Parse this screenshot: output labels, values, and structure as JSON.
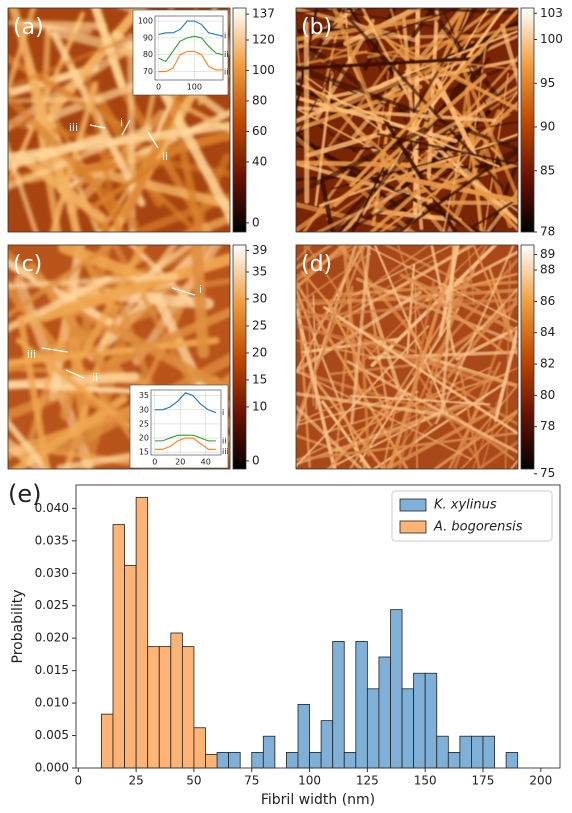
{
  "chart_data": [
    {
      "type": "image",
      "panel_label": "(a)",
      "clim": [
        -6,
        141
      ],
      "colorbar_ticks": [
        0,
        40,
        60,
        80,
        100,
        120,
        137
      ],
      "markers": [
        "iii",
        "i",
        "ii"
      ],
      "inset": {
        "type": "line",
        "xlim": [
          -10,
          180
        ],
        "ylim": [
          65,
          103
        ],
        "xticks": [
          0,
          100
        ],
        "yticks": [
          70,
          80,
          90,
          100
        ],
        "x": [
          0,
          20,
          40,
          60,
          80,
          100,
          120,
          140,
          160,
          180
        ],
        "series": [
          {
            "name": "i",
            "color": "#1f77b4",
            "values": [
              92,
              93,
              93,
              95,
              100,
              100,
              98,
              93,
              92,
              91
            ]
          },
          {
            "name": "ii",
            "color": "#2ca02c",
            "values": [
              78,
              76,
              82,
              88,
              90,
              91,
              90,
              85,
              81,
              80
            ]
          },
          {
            "name": "iii",
            "color": "#ff7f0e",
            "values": [
              70,
              70,
              72,
              80,
              82,
              82,
              80,
              73,
              71,
              71
            ]
          }
        ]
      }
    },
    {
      "type": "image",
      "panel_label": "(b)",
      "clim": [
        78,
        103.6
      ],
      "colorbar_ticks": [
        78,
        85,
        90,
        95,
        100,
        103
      ]
    },
    {
      "type": "image",
      "panel_label": "(c)",
      "clim": [
        -1.5,
        40
      ],
      "colorbar_ticks": [
        0,
        10,
        15,
        20,
        25,
        30,
        35,
        39
      ],
      "markers": [
        "i",
        "iii",
        "ii"
      ],
      "inset": {
        "type": "line",
        "xlim": [
          -3,
          52
        ],
        "ylim": [
          14,
          37
        ],
        "xticks": [
          0,
          20,
          40
        ],
        "yticks": [
          15,
          20,
          25,
          30,
          35
        ],
        "x": [
          0,
          6,
          12,
          18,
          24,
          30,
          36,
          42,
          48
        ],
        "series": [
          {
            "name": "i",
            "color": "#1f77b4",
            "values": [
              30,
              30,
              31,
              33,
              36,
              35,
              32,
              30,
              29
            ]
          },
          {
            "name": "ii",
            "color": "#2ca02c",
            "values": [
              19,
              19,
              20,
              21,
              21,
              21,
              20,
              19,
              19
            ]
          },
          {
            "name": "iii",
            "color": "#ff7f0e",
            "values": [
              16,
              16,
              17,
              19,
              20,
              20,
              18,
              16,
              16
            ]
          }
        ]
      }
    },
    {
      "type": "image",
      "panel_label": "(d)",
      "clim": [
        75.3,
        89.6
      ],
      "colorbar_ticks": [
        75,
        78,
        80,
        82,
        84,
        86,
        88,
        89
      ]
    },
    {
      "type": "histogram",
      "panel_label": "(e)",
      "xlabel": "Fibril width (nm)",
      "ylabel": "Probability",
      "xlim": [
        -1,
        208.3
      ],
      "ylim": [
        0,
        0.0436
      ],
      "xticks": [
        0,
        25,
        50,
        75,
        100,
        125,
        150,
        175,
        200
      ],
      "yticks": [
        {
          "value": 0,
          "label": "0.000"
        },
        {
          "value": 0.005,
          "label": "0.005"
        },
        {
          "value": 0.01,
          "label": "0.010"
        },
        {
          "value": 0.015,
          "label": "0.015"
        },
        {
          "value": 0.02,
          "label": "0.020"
        },
        {
          "value": 0.025,
          "label": "0.025"
        },
        {
          "value": 0.03,
          "label": "0.030"
        },
        {
          "value": 0.035,
          "label": "0.035"
        },
        {
          "value": 0.04,
          "label": "0.040"
        }
      ],
      "legend": "upper right",
      "series": [
        {
          "name": "K. xylinus",
          "color": "#7fb0d8",
          "bins": [
            60,
            65,
            70,
            75,
            80,
            85,
            90,
            95,
            100,
            105,
            110,
            115,
            120,
            125,
            130,
            135,
            140,
            145,
            150,
            155,
            160,
            165,
            170,
            175,
            180,
            185,
            190
          ],
          "values": [
            0.0024,
            0.0024,
            0,
            0.0024,
            0.0049,
            0,
            0.0024,
            0.0098,
            0.0024,
            0.0073,
            0.0195,
            0.0024,
            0.0195,
            0.0122,
            0.0171,
            0.0244,
            0.0122,
            0.0146,
            0.0146,
            0.0049,
            0.0024,
            0.0049,
            0.0049,
            0.0049,
            0,
            0.0024
          ]
        },
        {
          "name": "A. bogorensis",
          "color": "#fdb474",
          "bins": [
            10,
            15,
            20,
            25,
            30,
            35,
            40,
            45,
            50,
            55,
            60
          ],
          "values": [
            0.0083,
            0.0375,
            0.0312,
            0.0417,
            0.0187,
            0.0187,
            0.0208,
            0.0187,
            0.0062,
            0.0021
          ]
        }
      ]
    }
  ]
}
